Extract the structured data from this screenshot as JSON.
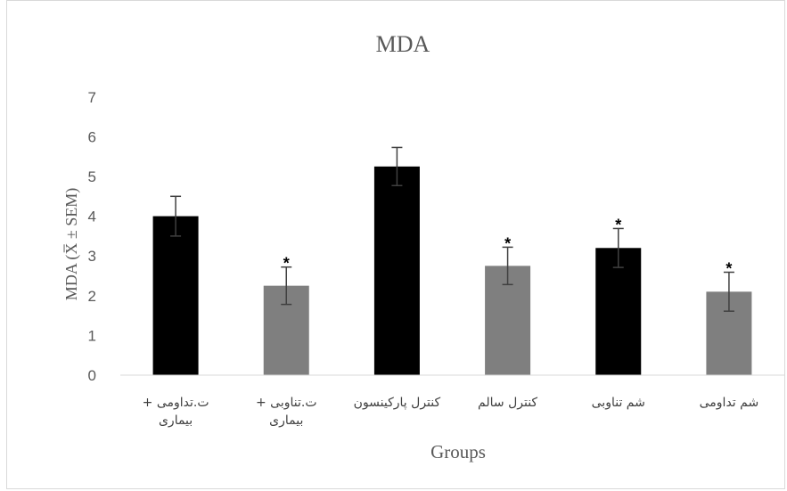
{
  "chart_data": {
    "type": "bar",
    "title": "MDA",
    "xlabel": "Groups",
    "ylabel": "MDA (X̅ ± SEM)",
    "ylim": [
      0,
      7
    ],
    "yticks": [
      "0",
      "1",
      "2",
      "3",
      "4",
      "5",
      "6",
      "7"
    ],
    "grid": false,
    "categories": [
      [
        "ت.تداومی +",
        "بیماری"
      ],
      [
        "ت.تناوبی +",
        "بیماری"
      ],
      [
        "کنترل پارکینسون"
      ],
      [
        "کنترل سالم"
      ],
      [
        "شم تناوبی"
      ],
      [
        "شم تداومی"
      ]
    ],
    "values": [
      4.0,
      2.25,
      5.25,
      2.75,
      3.2,
      2.1
    ],
    "errors": [
      0.5,
      0.47,
      0.48,
      0.47,
      0.49,
      0.49
    ],
    "significance": [
      "",
      "*",
      "",
      "*",
      "*",
      "*"
    ],
    "colors": [
      "#000000",
      "#7f7f7f",
      "#000000",
      "#7f7f7f",
      "#000000",
      "#7f7f7f"
    ],
    "error_bar_color": "#404040"
  }
}
